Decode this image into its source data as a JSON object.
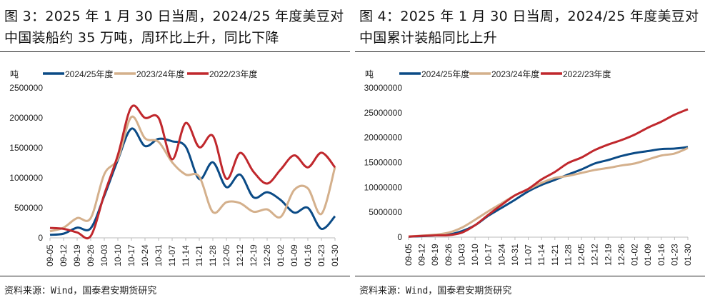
{
  "colors": {
    "s2425": "#0b4b86",
    "s2324": "#d4b08c",
    "s2223": "#c0282d"
  },
  "source": "资料来源：Wind，国泰君安期货研究",
  "chart_data": [
    {
      "type": "line",
      "title": "图 3：2025 年 1 月 30 日当周，2024/25 年度美豆对中国装船约 35 万吨，周环比上升，同比下降",
      "ylabel": "吨",
      "ylim": [
        0,
        2500000
      ],
      "yticks": [
        "0",
        "500000",
        "1000000",
        "1500000",
        "2000000",
        "2500000"
      ],
      "legend": "top",
      "grid": false,
      "categories": [
        "09-05",
        "09-12",
        "09-19",
        "09-26",
        "10-03",
        "10-10",
        "10-17",
        "10-24",
        "10-31",
        "11-07",
        "11-14",
        "11-21",
        "11-28",
        "12-05",
        "12-12",
        "12-19",
        "12-26",
        "01-02",
        "01-09",
        "01-16",
        "01-23",
        "01-30"
      ],
      "series": [
        {
          "name": "2024/25年度",
          "values": [
            50000,
            70000,
            170000,
            160000,
            700000,
            1300000,
            1820000,
            1530000,
            1650000,
            1610000,
            1520000,
            980000,
            1260000,
            845000,
            1055000,
            675000,
            760000,
            630000,
            420000,
            500000,
            150000,
            360000
          ]
        },
        {
          "name": "2023/24年度",
          "values": [
            110000,
            170000,
            330000,
            330000,
            1060000,
            1320000,
            2015000,
            1660000,
            1600000,
            1260000,
            1055000,
            1020000,
            430000,
            595000,
            580000,
            435000,
            475000,
            350000,
            800000,
            825000,
            400000,
            1180000
          ]
        },
        {
          "name": "2022/23年度",
          "values": [
            165000,
            150000,
            90000,
            30000,
            725000,
            1380000,
            2180000,
            2000000,
            2000000,
            1310000,
            1915000,
            1510000,
            1700000,
            985000,
            1415000,
            1100000,
            905000,
            1140000,
            1375000,
            1175000,
            1420000,
            1175000
          ]
        }
      ]
    },
    {
      "type": "line",
      "title": "图 4：2025 年 1 月 30 日当周，2024/25 年度美豆对中国累计装船同比上升",
      "ylabel": "吨",
      "ylim": [
        0,
        30000000
      ],
      "yticks": [
        "0",
        "5000000",
        "10000000",
        "15000000",
        "20000000",
        "25000000",
        "30000000"
      ],
      "legend": "top",
      "grid": false,
      "categories": [
        "09-05",
        "09-12",
        "09-19",
        "09-26",
        "10-03",
        "10-10",
        "10-17",
        "10-24",
        "10-31",
        "11-07",
        "11-14",
        "11-21",
        "11-28",
        "12-05",
        "12-12",
        "12-19",
        "12-26",
        "01-02",
        "01-09",
        "01-16",
        "01-23",
        "01-30"
      ],
      "series": [
        {
          "name": "2024/25年度",
          "values": [
            100000,
            200000,
            350000,
            500000,
            1200000,
            2400000,
            4300000,
            5900000,
            7500000,
            9200000,
            10500000,
            11500000,
            12600000,
            13600000,
            14800000,
            15500000,
            16300000,
            16900000,
            17300000,
            17700000,
            17800000,
            18100000
          ]
        },
        {
          "name": "2023/24年度",
          "values": [
            150000,
            300000,
            500000,
            900000,
            1900000,
            3500000,
            5200000,
            6800000,
            8400000,
            9600000,
            10900000,
            11900000,
            12300000,
            12900000,
            13500000,
            13900000,
            14400000,
            14800000,
            15600000,
            16400000,
            16800000,
            17900000
          ]
        },
        {
          "name": "2022/23年度",
          "values": [
            100000,
            250000,
            350000,
            400000,
            900000,
            2400000,
            4500000,
            6500000,
            8400000,
            9700000,
            11600000,
            13100000,
            14900000,
            16000000,
            17500000,
            18600000,
            19500000,
            20600000,
            22000000,
            23200000,
            24600000,
            25700000
          ]
        }
      ]
    }
  ]
}
